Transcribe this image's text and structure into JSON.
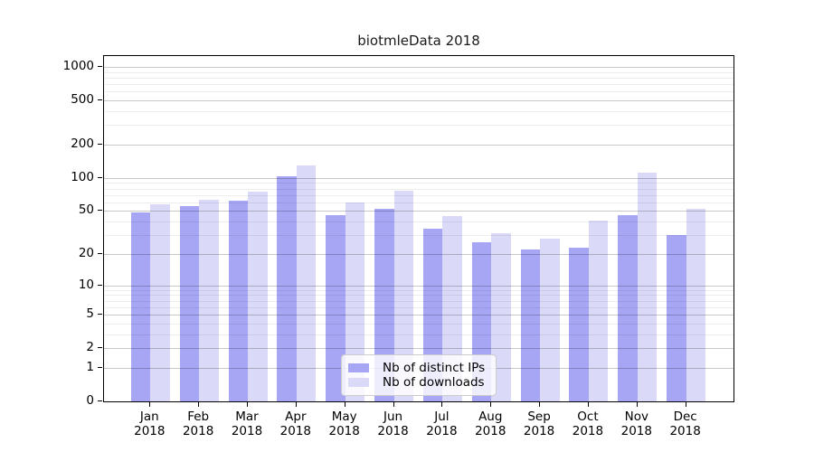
{
  "figure": {
    "title": "biotmleData 2018"
  },
  "chart_data": {
    "type": "bar",
    "title": "biotmleData 2018",
    "categories": [
      "Jan 2018",
      "Feb 2018",
      "Mar 2018",
      "Apr 2018",
      "May 2018",
      "Jun 2018",
      "Jul 2018",
      "Aug 2018",
      "Sep 2018",
      "Oct 2018",
      "Nov 2018",
      "Dec 2018"
    ],
    "series": [
      {
        "name": "Nb of distinct IPs",
        "color": "#a6a6f5",
        "values": [
          47,
          53,
          60,
          100,
          44,
          50,
          33,
          25,
          21,
          22,
          44,
          29
        ]
      },
      {
        "name": "Nb of downloads",
        "color": "#dadaf8",
        "values": [
          55,
          61,
          73,
          126,
          58,
          74,
          43,
          30,
          27,
          39,
          108,
          50
        ]
      }
    ],
    "yscale": "log1p",
    "xlabel": "",
    "ylabel": "",
    "yticks": [
      0,
      1,
      2,
      5,
      10,
      20,
      50,
      100,
      200,
      500,
      1000
    ],
    "minor_yticks": [
      3,
      4,
      6,
      7,
      8,
      9,
      30,
      40,
      60,
      70,
      80,
      90,
      300,
      400,
      600,
      700,
      800,
      900
    ],
    "ylim": [
      0,
      1250
    ],
    "grid": "on",
    "legend_position": "lower-center"
  }
}
